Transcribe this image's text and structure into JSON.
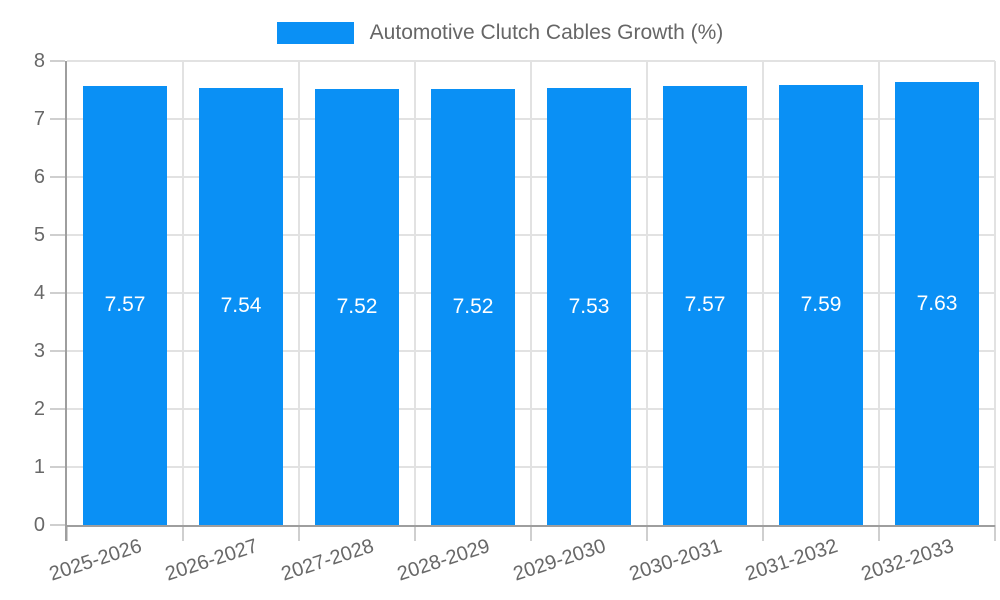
{
  "chart_data": {
    "type": "bar",
    "title": "Automotive Clutch Cables Growth (%)",
    "legend_position": "top",
    "categories": [
      "2025-2026",
      "2026-2027",
      "2027-2028",
      "2028-2029",
      "2029-2030",
      "2030-2031",
      "2031-2032",
      "2032-2033"
    ],
    "values": [
      7.57,
      7.54,
      7.52,
      7.52,
      7.53,
      7.57,
      7.59,
      7.63
    ],
    "value_labels": [
      "7.57",
      "7.54",
      "7.52",
      "7.52",
      "7.53",
      "7.57",
      "7.59",
      "7.63"
    ],
    "ylabel": "",
    "xlabel": "",
    "ylim": [
      0,
      8
    ],
    "ytick_step": 1,
    "ytick_labels": [
      "0",
      "1",
      "2",
      "3",
      "4",
      "5",
      "6",
      "7",
      "8"
    ],
    "grid": true,
    "colors": {
      "bar": "#0A90F5",
      "value_label": "#ffffff",
      "axis_text": "#686868",
      "legend_text": "#666666",
      "gridline": "#e2e2e2",
      "axis_line": "#9e9e9e",
      "tick_mark": "#cfcfcf",
      "background": "#ffffff"
    }
  }
}
